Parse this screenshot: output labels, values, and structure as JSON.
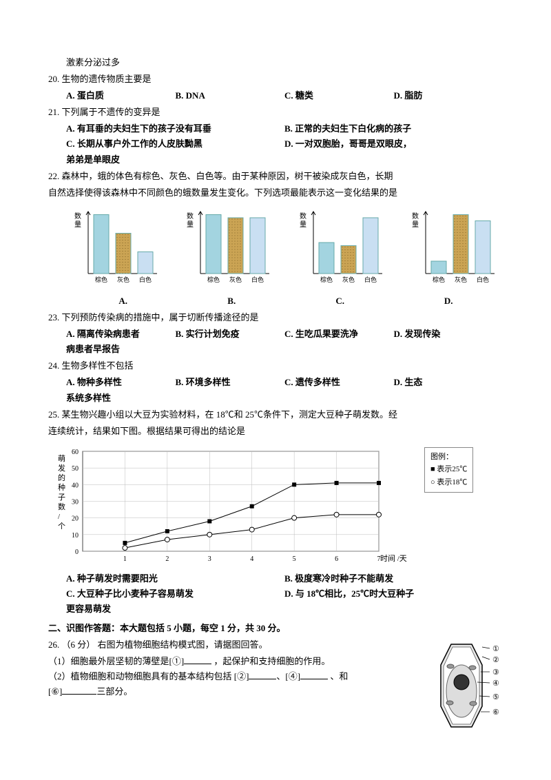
{
  "top_frag": "激素分泌过多",
  "q20": {
    "num": "20.",
    "stem": "生物的遗传物质主要是",
    "A": "A.  蛋白质",
    "B": "B. DNA",
    "C": "C.  糖类",
    "D": "D.  脂肪"
  },
  "q21": {
    "num": "21.",
    "stem": "下列属于不遗传的变异是",
    "A": "A.  有耳垂的夫妇生下的孩子没有耳垂",
    "B": "B.  正常的夫妇生下白化病的孩子",
    "C": "C.  长期从事户外工作的人皮肤黝黑",
    "D": "D.  一对双胞胎，哥哥是双眼皮，",
    "D2": "弟弟是单眼皮"
  },
  "q22": {
    "num": "22.",
    "stem1": "    森林中，蛾的体色有棕色、灰色、白色等。由于某种原因，树干被染成灰白色，长期",
    "stem2": "自然选择使得该森林中不同颜色的蛾数量发生变化。下列选项最能表示这一变化结果的是",
    "axis_y": "数量",
    "cats": [
      "棕色",
      "灰色",
      "白色"
    ],
    "charts": {
      "A": {
        "values": [
          95,
          65,
          35
        ],
        "colors": [
          "#a3d4e0",
          "#cba454",
          "#c9dff2"
        ]
      },
      "B": {
        "values": [
          95,
          90,
          90
        ],
        "colors": [
          "#a3d4e0",
          "#cba454",
          "#c9dff2"
        ]
      },
      "C": {
        "values": [
          50,
          45,
          90
        ],
        "colors": [
          "#a3d4e0",
          "#cba454",
          "#c9dff2"
        ]
      },
      "D": {
        "values": [
          20,
          95,
          85
        ],
        "colors": [
          "#a3d4e0",
          "#cba454",
          "#c9dff2"
        ]
      }
    },
    "labels": {
      "A": "A.",
      "B": "B.",
      "C": "C.",
      "D": "D."
    }
  },
  "q23": {
    "num": "23.",
    "stem": "下列预防传染病的措施中，属于切断传播途径的是",
    "A": "A.  隔离传染病患者",
    "B": "B.  实行计划免疫",
    "C": "C.  生吃瓜果要洗净",
    "D": "D.  发现传染",
    "D2": "病患者早报告"
  },
  "q24": {
    "num": "24.",
    "stem": "生物多样性不包括",
    "A": "A.  物种多样性",
    "B": "B.  环境多样性",
    "C": "C.  遗传多样性",
    "D": "D.  生态",
    "D2": "系统多样性"
  },
  "q25": {
    "num": "25.",
    "stem1": "    某生物兴趣小组以大豆为实验材料，在 18℃和 25℃条件下，测定大豆种子萌发数。经",
    "stem2": "连续统计，结果如下图。根据结果可得出的结论是",
    "y_label_lines": [
      "萌",
      "发",
      "的",
      "种",
      "子",
      "数",
      "/",
      "个"
    ],
    "x_label": "时间 /天",
    "y_ticks": [
      0,
      10,
      20,
      30,
      40,
      50,
      60
    ],
    "x_ticks": [
      1,
      2,
      3,
      4,
      5,
      6,
      7
    ],
    "legend_title": "图例：",
    "legend25": "表示25℃",
    "legend18": "表示18℃",
    "series25": {
      "marker": "■",
      "color": "#000",
      "points": [
        [
          1,
          5
        ],
        [
          2,
          12
        ],
        [
          3,
          18
        ],
        [
          4,
          27
        ],
        [
          5,
          40
        ],
        [
          6,
          41
        ],
        [
          7,
          41
        ]
      ]
    },
    "series18": {
      "marker": "○",
      "color": "#000",
      "points": [
        [
          1,
          2
        ],
        [
          2,
          7
        ],
        [
          3,
          10
        ],
        [
          4,
          13
        ],
        [
          5,
          20
        ],
        [
          6,
          22
        ],
        [
          7,
          22
        ]
      ]
    },
    "A": "A.  种子萌发时需要阳光",
    "B": "B.  极度寒冷时种子不能萌发",
    "C": "C.  大豆种子比小麦种子容易萌发",
    "D": "D.  与 18℃相比，25℃时大豆种子",
    "D2": "更容易萌发"
  },
  "section2": "二、识图作答题：本大题包括 5 小题，每空 1 分，共 30 分。",
  "q26": {
    "num": "26.",
    "score": "（6 分）",
    "stem": "右图为植物细胞结构模式图，请据图回答。",
    "p1a": "（1）细胞最外层坚韧的薄壁是[①]",
    "p1b": " ，起保护和支持细胞的作用。",
    "p2a": "（2）植物细胞和动物细胞具有的基本结构包括  [②]",
    "p2b": "、[④]",
    "p2c": " 、和",
    "p3a": "  [⑥]",
    "p3b": "三部分。",
    "labels": [
      "①",
      "②",
      "③",
      "④",
      "⑤",
      "⑥"
    ]
  }
}
